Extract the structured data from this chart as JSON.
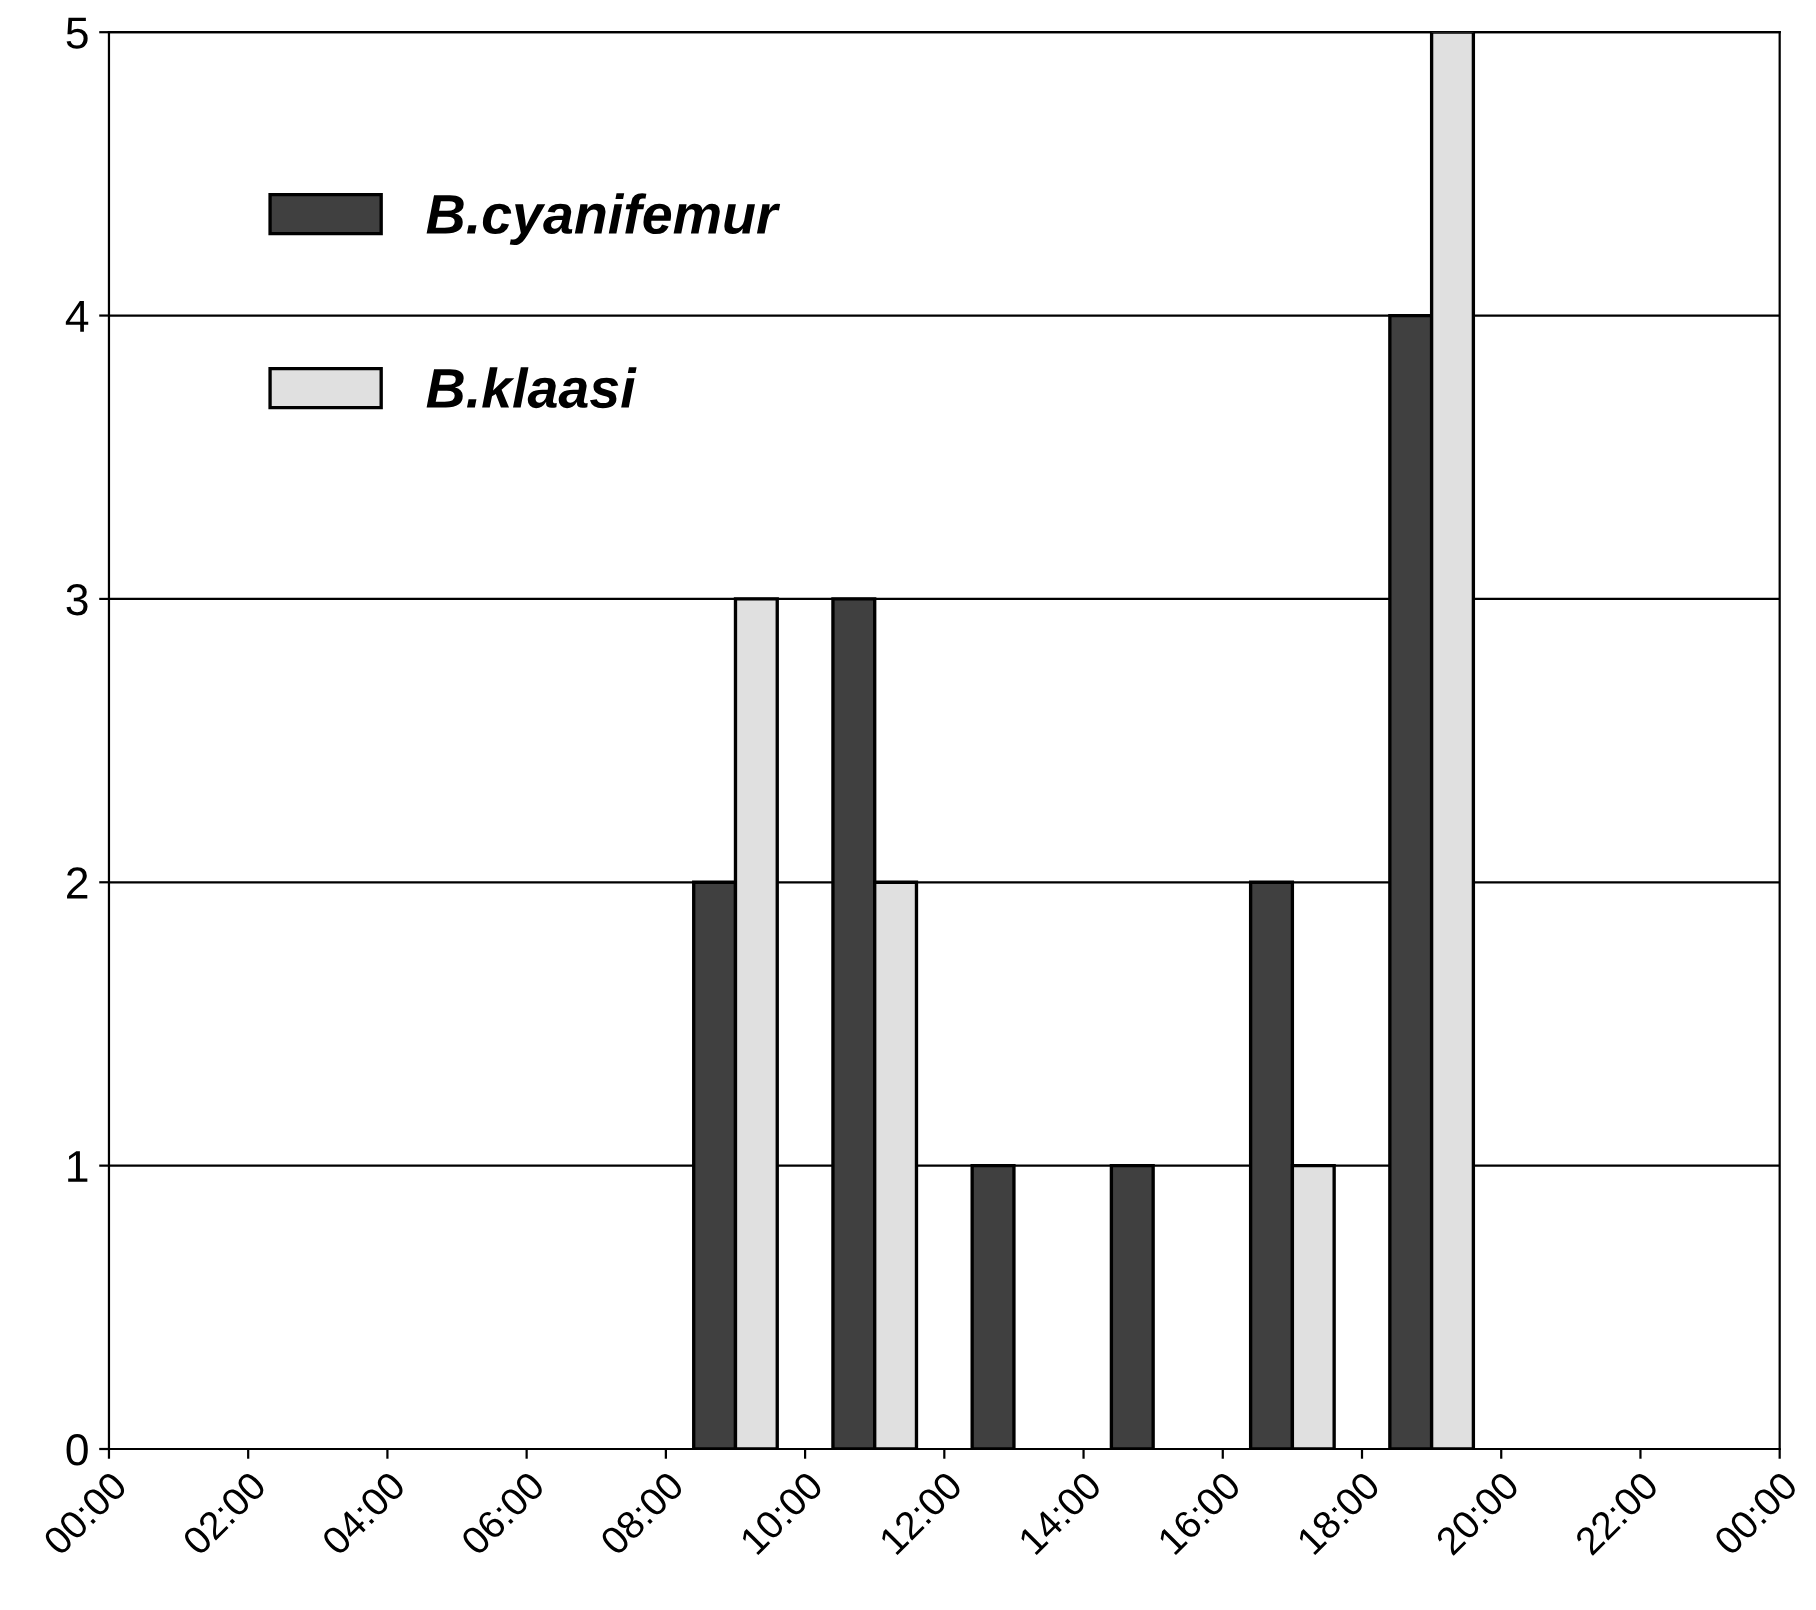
{
  "chart_data": {
    "type": "bar",
    "x": [
      9,
      11,
      13,
      15,
      17,
      19
    ],
    "series": [
      {
        "name": "B.cyanifemur",
        "color": "#404040",
        "values": [
          2,
          3,
          1,
          1,
          2,
          4
        ]
      },
      {
        "name": "B.klaasi",
        "color": "#e0e0e0",
        "values": [
          3,
          2,
          null,
          null,
          1,
          5
        ]
      }
    ],
    "xlim": [
      0,
      24
    ],
    "xticks": [
      {
        "value": 0,
        "label": "00:00"
      },
      {
        "value": 2,
        "label": "02:00"
      },
      {
        "value": 4,
        "label": "04:00"
      },
      {
        "value": 6,
        "label": "06:00"
      },
      {
        "value": 8,
        "label": "08:00"
      },
      {
        "value": 10,
        "label": "10:00"
      },
      {
        "value": 12,
        "label": "12:00"
      },
      {
        "value": 14,
        "label": "14:00"
      },
      {
        "value": 16,
        "label": "16:00"
      },
      {
        "value": 18,
        "label": "18:00"
      },
      {
        "value": 20,
        "label": "20:00"
      },
      {
        "value": 22,
        "label": "22:00"
      },
      {
        "value": 24,
        "label": "00:00"
      }
    ],
    "ylim": [
      0,
      5
    ],
    "yticks": [
      0,
      1,
      2,
      3,
      4,
      5
    ],
    "grid": "y",
    "legend": "top left"
  }
}
